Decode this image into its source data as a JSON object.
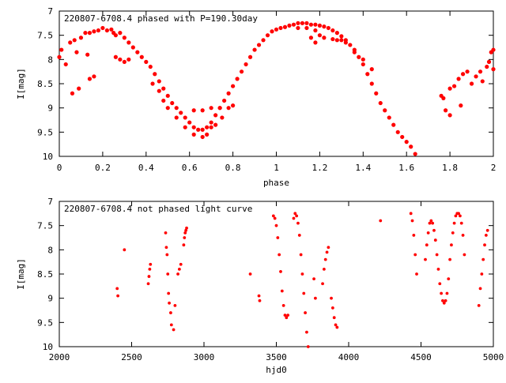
{
  "chart_data": [
    {
      "type": "scatter",
      "title": "220807-6708.4 phased with P=190.30day",
      "xlabel": "phase",
      "ylabel": "I[mag]",
      "xlim": [
        0,
        2
      ],
      "ylim": [
        7,
        10
      ],
      "y_inverted": true,
      "x_ticks": [
        "0",
        "0.2",
        "0.4",
        "0.6",
        "0.8",
        "1",
        "1.2",
        "1.4",
        "1.6",
        "1.8",
        "2"
      ],
      "y_ticks": [
        "7",
        "7.5",
        "8",
        "8.5",
        "9",
        "9.5",
        "10"
      ],
      "grid": false,
      "color": "#ff0000",
      "points": [
        [
          0.0,
          7.95
        ],
        [
          0.01,
          7.8
        ],
        [
          0.03,
          8.1
        ],
        [
          0.05,
          7.65
        ],
        [
          0.06,
          8.7
        ],
        [
          0.07,
          7.6
        ],
        [
          0.08,
          7.85
        ],
        [
          0.09,
          8.6
        ],
        [
          0.1,
          7.55
        ],
        [
          0.12,
          7.45
        ],
        [
          0.13,
          7.9
        ],
        [
          0.14,
          7.45
        ],
        [
          0.16,
          7.42
        ],
        [
          0.18,
          7.4
        ],
        [
          0.2,
          7.35
        ],
        [
          0.22,
          7.4
        ],
        [
          0.24,
          7.38
        ],
        [
          0.25,
          7.45
        ],
        [
          0.26,
          7.5
        ],
        [
          0.28,
          7.45
        ],
        [
          0.3,
          7.55
        ],
        [
          0.32,
          7.65
        ],
        [
          0.34,
          7.75
        ],
        [
          0.36,
          7.85
        ],
        [
          0.38,
          7.95
        ],
        [
          0.4,
          8.05
        ],
        [
          0.42,
          8.15
        ],
        [
          0.44,
          8.3
        ],
        [
          0.46,
          8.45
        ],
        [
          0.48,
          8.6
        ],
        [
          0.5,
          8.75
        ],
        [
          0.52,
          8.9
        ],
        [
          0.54,
          9.0
        ],
        [
          0.56,
          9.1
        ],
        [
          0.58,
          9.2
        ],
        [
          0.6,
          9.3
        ],
        [
          0.62,
          9.4
        ],
        [
          0.64,
          9.45
        ],
        [
          0.66,
          9.45
        ],
        [
          0.68,
          9.4
        ],
        [
          0.7,
          9.3
        ],
        [
          0.72,
          9.15
        ],
        [
          0.74,
          9.0
        ],
        [
          0.76,
          8.85
        ],
        [
          0.78,
          8.7
        ],
        [
          0.8,
          8.55
        ],
        [
          0.82,
          8.4
        ],
        [
          0.84,
          8.25
        ],
        [
          0.86,
          8.1
        ],
        [
          0.88,
          7.95
        ],
        [
          0.9,
          7.8
        ],
        [
          0.92,
          7.7
        ],
        [
          0.94,
          7.6
        ],
        [
          0.96,
          7.5
        ],
        [
          0.98,
          7.42
        ],
        [
          1.0,
          7.38
        ],
        [
          1.02,
          7.35
        ],
        [
          1.04,
          7.33
        ],
        [
          1.06,
          7.3
        ],
        [
          1.08,
          7.28
        ],
        [
          1.1,
          7.25
        ],
        [
          1.12,
          7.25
        ],
        [
          1.14,
          7.25
        ],
        [
          1.16,
          7.28
        ],
        [
          1.18,
          7.28
        ],
        [
          1.2,
          7.3
        ],
        [
          1.22,
          7.32
        ],
        [
          1.24,
          7.35
        ],
        [
          1.26,
          7.4
        ],
        [
          1.28,
          7.45
        ],
        [
          1.3,
          7.52
        ],
        [
          1.32,
          7.6
        ],
        [
          1.34,
          7.7
        ],
        [
          1.36,
          7.8
        ],
        [
          1.38,
          7.95
        ],
        [
          1.4,
          8.1
        ],
        [
          1.42,
          8.3
        ],
        [
          1.44,
          8.5
        ],
        [
          1.46,
          8.7
        ],
        [
          1.48,
          8.9
        ],
        [
          1.5,
          9.05
        ],
        [
          1.52,
          9.2
        ],
        [
          1.54,
          9.35
        ],
        [
          1.56,
          9.5
        ],
        [
          1.58,
          9.6
        ],
        [
          1.6,
          9.7
        ],
        [
          1.62,
          9.8
        ],
        [
          1.64,
          9.95
        ],
        [
          0.14,
          8.4
        ],
        [
          0.16,
          8.35
        ],
        [
          0.26,
          7.95
        ],
        [
          0.28,
          8.0
        ],
        [
          0.3,
          8.05
        ],
        [
          0.32,
          8.0
        ],
        [
          0.43,
          8.5
        ],
        [
          0.46,
          8.65
        ],
        [
          0.48,
          8.85
        ],
        [
          0.5,
          9.0
        ],
        [
          0.54,
          9.2
        ],
        [
          0.58,
          9.4
        ],
        [
          0.62,
          9.55
        ],
        [
          0.66,
          9.6
        ],
        [
          0.68,
          9.55
        ],
        [
          0.7,
          9.4
        ],
        [
          0.72,
          9.35
        ],
        [
          0.75,
          9.2
        ],
        [
          0.62,
          9.05
        ],
        [
          0.66,
          9.05
        ],
        [
          0.7,
          9.0
        ],
        [
          0.74,
          9.0
        ],
        [
          0.78,
          9.0
        ],
        [
          0.8,
          8.95
        ],
        [
          1.1,
          7.35
        ],
        [
          1.14,
          7.35
        ],
        [
          1.18,
          7.4
        ],
        [
          1.2,
          7.5
        ],
        [
          1.22,
          7.55
        ],
        [
          1.26,
          7.58
        ],
        [
          1.28,
          7.6
        ],
        [
          1.3,
          7.6
        ],
        [
          1.32,
          7.65
        ],
        [
          1.36,
          7.85
        ],
        [
          1.4,
          8.0
        ],
        [
          1.44,
          8.2
        ],
        [
          1.18,
          7.65
        ],
        [
          1.16,
          7.55
        ],
        [
          1.76,
          8.75
        ],
        [
          1.77,
          8.8
        ],
        [
          1.78,
          9.05
        ],
        [
          1.8,
          9.15
        ],
        [
          1.8,
          8.6
        ],
        [
          1.82,
          8.55
        ],
        [
          1.84,
          8.4
        ],
        [
          1.85,
          8.95
        ],
        [
          1.86,
          8.3
        ],
        [
          1.88,
          8.25
        ],
        [
          1.9,
          8.5
        ],
        [
          1.92,
          8.35
        ],
        [
          1.94,
          8.25
        ],
        [
          1.95,
          8.45
        ],
        [
          1.97,
          8.15
        ],
        [
          1.98,
          8.05
        ],
        [
          1.99,
          7.85
        ],
        [
          2.0,
          7.8
        ],
        [
          2.0,
          8.2
        ]
      ]
    },
    {
      "type": "scatter",
      "title": "220807-6708.4 not phased light curve",
      "xlabel": "hjd0",
      "ylabel": "I[mag]",
      "xlim": [
        2000,
        5000
      ],
      "ylim": [
        7,
        10
      ],
      "y_inverted": true,
      "x_ticks": [
        "2000",
        "2500",
        "3000",
        "3500",
        "4000",
        "4500",
        "5000"
      ],
      "y_ticks": [
        "7",
        "7.5",
        "8",
        "8.5",
        "9",
        "9.5",
        "10"
      ],
      "grid": false,
      "color": "#ff0000",
      "points": [
        [
          2400,
          8.8
        ],
        [
          2405,
          8.95
        ],
        [
          2450,
          8.0
        ],
        [
          2615,
          8.7
        ],
        [
          2620,
          8.55
        ],
        [
          2625,
          8.4
        ],
        [
          2630,
          8.3
        ],
        [
          2735,
          7.65
        ],
        [
          2740,
          7.95
        ],
        [
          2745,
          8.1
        ],
        [
          2750,
          8.5
        ],
        [
          2755,
          8.9
        ],
        [
          2760,
          9.1
        ],
        [
          2770,
          9.3
        ],
        [
          2775,
          9.55
        ],
        [
          2790,
          9.65
        ],
        [
          2800,
          9.15
        ],
        [
          2820,
          8.5
        ],
        [
          2830,
          8.4
        ],
        [
          2840,
          8.3
        ],
        [
          2860,
          7.9
        ],
        [
          2865,
          7.75
        ],
        [
          2870,
          7.65
        ],
        [
          2875,
          7.6
        ],
        [
          2880,
          7.55
        ],
        [
          3320,
          8.5
        ],
        [
          3380,
          8.95
        ],
        [
          3385,
          9.05
        ],
        [
          3480,
          7.3
        ],
        [
          3490,
          7.35
        ],
        [
          3500,
          7.5
        ],
        [
          3510,
          7.75
        ],
        [
          3520,
          8.1
        ],
        [
          3530,
          8.45
        ],
        [
          3540,
          8.85
        ],
        [
          3550,
          9.15
        ],
        [
          3560,
          9.35
        ],
        [
          3570,
          9.4
        ],
        [
          3580,
          9.35
        ],
        [
          3620,
          7.35
        ],
        [
          3630,
          7.25
        ],
        [
          3640,
          7.3
        ],
        [
          3650,
          7.45
        ],
        [
          3660,
          7.7
        ],
        [
          3670,
          8.1
        ],
        [
          3680,
          8.5
        ],
        [
          3690,
          8.9
        ],
        [
          3700,
          9.3
        ],
        [
          3710,
          9.7
        ],
        [
          3720,
          10.0
        ],
        [
          3760,
          8.6
        ],
        [
          3770,
          9.0
        ],
        [
          3820,
          8.7
        ],
        [
          3830,
          8.4
        ],
        [
          3840,
          8.2
        ],
        [
          3850,
          8.05
        ],
        [
          3860,
          7.95
        ],
        [
          3880,
          9.0
        ],
        [
          3890,
          9.2
        ],
        [
          3900,
          9.4
        ],
        [
          3910,
          9.55
        ],
        [
          3920,
          9.6
        ],
        [
          4220,
          7.4
        ],
        [
          4430,
          7.25
        ],
        [
          4440,
          7.4
        ],
        [
          4450,
          7.7
        ],
        [
          4460,
          8.1
        ],
        [
          4470,
          8.5
        ],
        [
          4530,
          8.2
        ],
        [
          4540,
          7.9
        ],
        [
          4550,
          7.65
        ],
        [
          4560,
          7.45
        ],
        [
          4570,
          7.4
        ],
        [
          4580,
          7.45
        ],
        [
          4590,
          7.6
        ],
        [
          4600,
          7.8
        ],
        [
          4610,
          8.1
        ],
        [
          4620,
          8.4
        ],
        [
          4630,
          8.7
        ],
        [
          4640,
          8.9
        ],
        [
          4650,
          9.05
        ],
        [
          4660,
          9.1
        ],
        [
          4670,
          9.05
        ],
        [
          4680,
          8.9
        ],
        [
          4690,
          8.6
        ],
        [
          4700,
          8.2
        ],
        [
          4710,
          7.9
        ],
        [
          4720,
          7.65
        ],
        [
          4730,
          7.45
        ],
        [
          4740,
          7.3
        ],
        [
          4750,
          7.25
        ],
        [
          4760,
          7.25
        ],
        [
          4770,
          7.3
        ],
        [
          4780,
          7.45
        ],
        [
          4790,
          7.7
        ],
        [
          4800,
          8.1
        ],
        [
          4900,
          9.15
        ],
        [
          4910,
          8.8
        ],
        [
          4920,
          8.5
        ],
        [
          4930,
          8.2
        ],
        [
          4940,
          7.9
        ],
        [
          4950,
          7.7
        ],
        [
          4960,
          7.6
        ]
      ]
    }
  ]
}
